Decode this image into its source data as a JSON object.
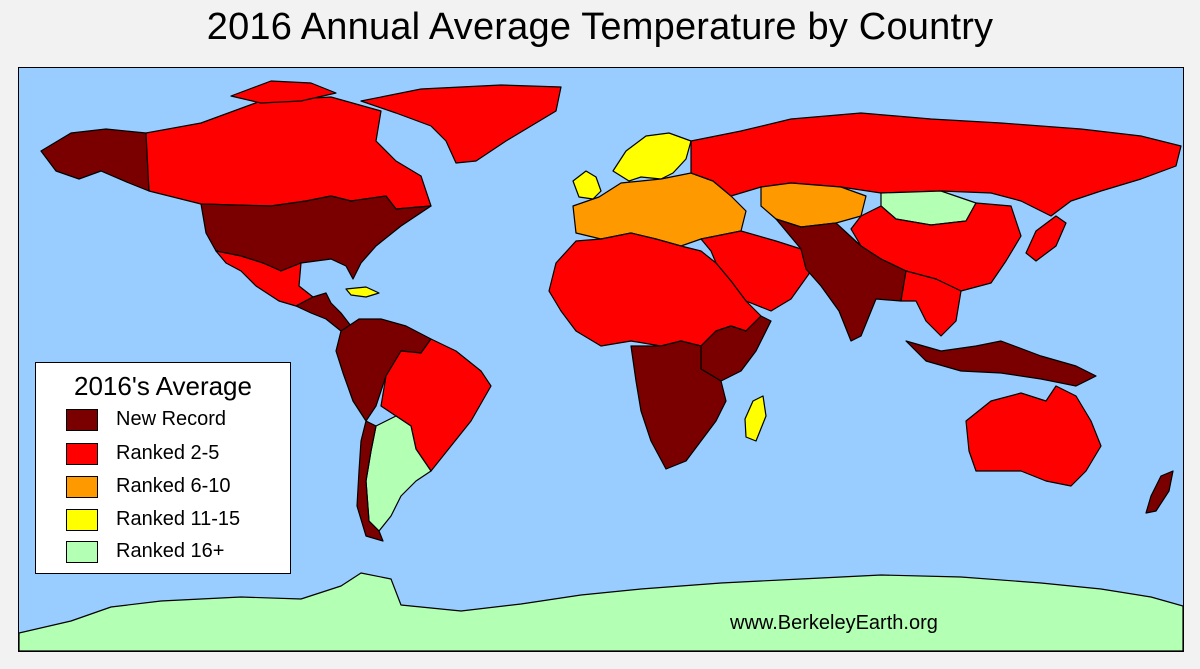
{
  "title": "2016 Annual Average Temperature by Country",
  "legend": {
    "title": "2016's Average",
    "items": [
      {
        "label": "New Record",
        "color": "#7a0000"
      },
      {
        "label": "Ranked 2-5",
        "color": "#ff0000"
      },
      {
        "label": "Ranked 6-10",
        "color": "#ff9900"
      },
      {
        "label": "Ranked 11-15",
        "color": "#ffff00"
      },
      {
        "label": "Ranked 16+",
        "color": "#b3ffb3"
      }
    ]
  },
  "credit": "www.BerkeleyEarth.org",
  "colors": {
    "ocean": "#99ccff",
    "record": "#7a0000",
    "ranked_2_5": "#ff0000",
    "ranked_6_10": "#ff9900",
    "ranked_11_15": "#ffff00",
    "ranked_16_plus": "#b3ffb3"
  },
  "regions": [
    {
      "name": "alaska",
      "class": "record"
    },
    {
      "name": "canada",
      "class": "ranked_2_5"
    },
    {
      "name": "greenland",
      "class": "ranked_2_5"
    },
    {
      "name": "united-states",
      "class": "record"
    },
    {
      "name": "mexico",
      "class": "ranked_2_5"
    },
    {
      "name": "central-america",
      "class": "record"
    },
    {
      "name": "caribbean",
      "class": "ranked_11_15"
    },
    {
      "name": "northern-south-america",
      "class": "record"
    },
    {
      "name": "brazil",
      "class": "ranked_2_5"
    },
    {
      "name": "argentina",
      "class": "ranked_16_plus"
    },
    {
      "name": "chile",
      "class": "record"
    },
    {
      "name": "uk-ireland",
      "class": "ranked_11_15"
    },
    {
      "name": "scandinavia",
      "class": "ranked_11_15"
    },
    {
      "name": "europe",
      "class": "ranked_6_10"
    },
    {
      "name": "russia",
      "class": "ranked_2_5"
    },
    {
      "name": "kazakhstan",
      "class": "ranked_6_10"
    },
    {
      "name": "mongolia",
      "class": "ranked_16_plus"
    },
    {
      "name": "china",
      "class": "ranked_2_5"
    },
    {
      "name": "middle-east",
      "class": "ranked_2_5"
    },
    {
      "name": "india-south-asia",
      "class": "record"
    },
    {
      "name": "southeast-asia",
      "class": "ranked_2_5"
    },
    {
      "name": "indonesia",
      "class": "record"
    },
    {
      "name": "japan",
      "class": "ranked_2_5"
    },
    {
      "name": "north-africa",
      "class": "ranked_2_5"
    },
    {
      "name": "east-africa",
      "class": "record"
    },
    {
      "name": "southern-africa",
      "class": "record"
    },
    {
      "name": "madagascar",
      "class": "ranked_11_15"
    },
    {
      "name": "australia",
      "class": "ranked_2_5"
    },
    {
      "name": "new-zealand",
      "class": "record"
    },
    {
      "name": "antarctica",
      "class": "ranked_16_plus"
    }
  ]
}
